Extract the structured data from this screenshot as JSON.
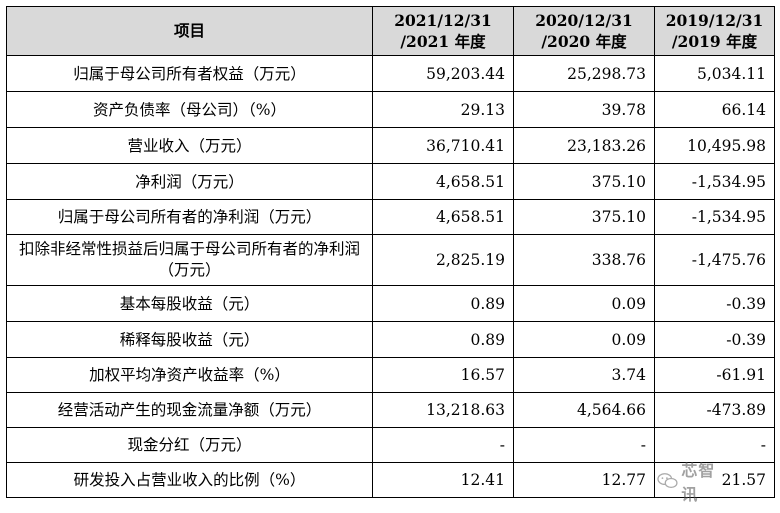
{
  "table": {
    "header": {
      "item": "项目",
      "years": [
        {
          "line1": "2021/12/31",
          "line2": "/2021 年度"
        },
        {
          "line1": "2020/12/31",
          "line2": "/2020 年度"
        },
        {
          "line1": "2019/12/31",
          "line2": "/2019 年度"
        }
      ]
    },
    "rows": [
      {
        "label": "归属于母公司所有者权益（万元）",
        "values": [
          "59,203.44",
          "25,298.73",
          "5,034.11"
        ]
      },
      {
        "label": "资产负债率（母公司）（%）",
        "values": [
          "29.13",
          "39.78",
          "66.14"
        ]
      },
      {
        "label": "营业收入（万元）",
        "values": [
          "36,710.41",
          "23,183.26",
          "10,495.98"
        ]
      },
      {
        "label": "净利润（万元）",
        "values": [
          "4,658.51",
          "375.10",
          "-1,534.95"
        ]
      },
      {
        "label": "归属于母公司所有者的净利润（万元）",
        "values": [
          "4,658.51",
          "375.10",
          "-1,534.95"
        ]
      },
      {
        "label": "扣除非经常性损益后归属于母公司所有者的净利润（万元）",
        "values": [
          "2,825.19",
          "338.76",
          "-1,475.76"
        ]
      },
      {
        "label": "基本每股收益（元）",
        "values": [
          "0.89",
          "0.09",
          "-0.39"
        ]
      },
      {
        "label": "稀释每股收益（元）",
        "values": [
          "0.89",
          "0.09",
          "-0.39"
        ]
      },
      {
        "label": "加权平均净资产收益率（%）",
        "values": [
          "16.57",
          "3.74",
          "-61.91"
        ]
      },
      {
        "label": "经营活动产生的现金流量净额（万元）",
        "values": [
          "13,218.63",
          "4,564.66",
          "-473.89"
        ]
      },
      {
        "label": "现金分红（万元）",
        "values": [
          "-",
          "-",
          "-"
        ]
      },
      {
        "label": "研发投入占营业收入的比例（%）",
        "values": [
          "12.41",
          "12.77",
          "21.57"
        ]
      }
    ]
  },
  "watermark": {
    "text": "芯智讯",
    "icon": "wechat-icon"
  }
}
